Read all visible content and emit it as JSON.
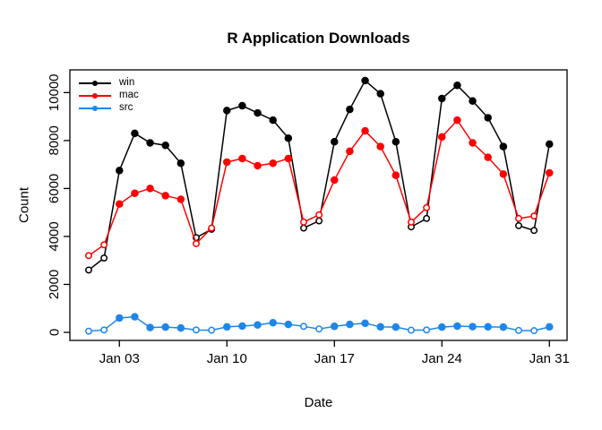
{
  "chart_data": {
    "type": "line",
    "title": "R Application Downloads",
    "xlabel": "Date",
    "ylabel": "Count",
    "legend_position": "top-left",
    "grid": false,
    "ylim": [
      0,
      10700
    ],
    "y_ticks": [
      0,
      2000,
      4000,
      6000,
      8000,
      10000
    ],
    "x_tick_days": [
      3,
      10,
      17,
      24,
      31
    ],
    "x_tick_labels": [
      "Jan 03",
      "Jan 10",
      "Jan 17",
      "Jan 24",
      "Jan 31"
    ],
    "dates": [
      "Jan 01",
      "Jan 02",
      "Jan 03",
      "Jan 04",
      "Jan 05",
      "Jan 06",
      "Jan 07",
      "Jan 08",
      "Jan 09",
      "Jan 10",
      "Jan 11",
      "Jan 12",
      "Jan 13",
      "Jan 14",
      "Jan 15",
      "Jan 16",
      "Jan 17",
      "Jan 18",
      "Jan 19",
      "Jan 20",
      "Jan 21",
      "Jan 22",
      "Jan 23",
      "Jan 24",
      "Jan 25",
      "Jan 26",
      "Jan 27",
      "Jan 28",
      "Jan 29",
      "Jan 30",
      "Jan 31"
    ],
    "days": [
      1,
      2,
      3,
      4,
      5,
      6,
      7,
      8,
      9,
      10,
      11,
      12,
      13,
      14,
      15,
      16,
      17,
      18,
      19,
      20,
      21,
      22,
      23,
      24,
      25,
      26,
      27,
      28,
      29,
      30,
      31
    ],
    "weekend_days_open_markers": [
      1,
      2,
      8,
      9,
      15,
      16,
      22,
      23,
      29,
      30
    ],
    "series": [
      {
        "name": "win",
        "color": "#000000",
        "values": [
          2600,
          3100,
          6750,
          8300,
          7900,
          7800,
          7050,
          3950,
          4300,
          9250,
          9450,
          9150,
          8850,
          8100,
          4350,
          4650,
          7950,
          9300,
          10500,
          9950,
          7950,
          4400,
          4750,
          9750,
          10300,
          9650,
          8950,
          7750,
          4450,
          4250,
          7850
        ]
      },
      {
        "name": "mac",
        "color": "#FF0000",
        "values": [
          3200,
          3650,
          5350,
          5800,
          6000,
          5700,
          5550,
          3700,
          4350,
          7100,
          7250,
          6950,
          7050,
          7250,
          4600,
          4900,
          6350,
          7550,
          8400,
          7750,
          6550,
          4600,
          5200,
          8150,
          8850,
          7900,
          7300,
          6600,
          4750,
          4850,
          6650
        ]
      },
      {
        "name": "src",
        "color": "#1E86E8",
        "values": [
          50,
          100,
          600,
          650,
          200,
          220,
          180,
          100,
          90,
          230,
          260,
          310,
          400,
          330,
          250,
          140,
          250,
          330,
          380,
          230,
          220,
          90,
          100,
          220,
          260,
          240,
          230,
          220,
          80,
          70,
          230
        ]
      }
    ]
  }
}
